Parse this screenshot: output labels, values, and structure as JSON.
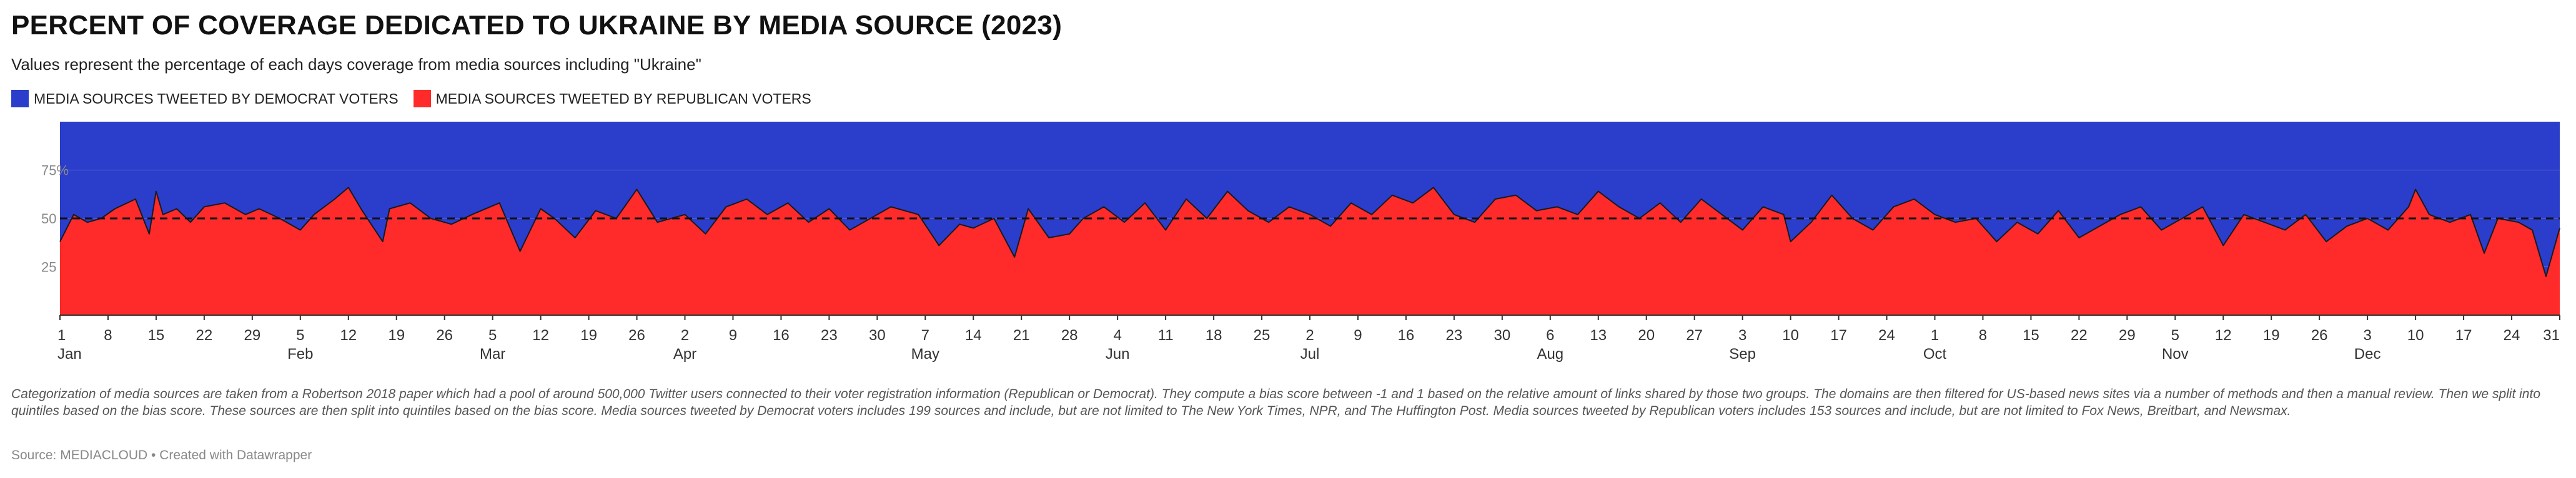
{
  "header": {
    "title": "PERCENT OF COVERAGE DEDICATED TO UKRAINE BY MEDIA SOURCE (2023)",
    "subtitle": "Values represent the percentage of each days coverage from media sources including \"Ukraine\""
  },
  "legend": {
    "democrat_label": "MEDIA SOURCES TWEETED BY DEMOCRAT VOTERS",
    "republican_label": "MEDIA SOURCES TWEETED BY REPUBLICAN VOTERS"
  },
  "colors": {
    "democrat": "#2b3dcb",
    "republican": "#ff2a2a",
    "reference_line": "#111111"
  },
  "chart_data": {
    "type": "area",
    "stacked": true,
    "y_ticks": [
      {
        "value": 25,
        "label": "25"
      },
      {
        "value": 50,
        "label": "50"
      },
      {
        "value": 75,
        "label": "75%"
      }
    ],
    "ylim": [
      0,
      100
    ],
    "reference_line": 50,
    "x_start": "2023-01-01",
    "x_end": "2023-12-31",
    "x_ticks": [
      {
        "date": "2023-01-01",
        "day": "1",
        "month": "Jan"
      },
      {
        "date": "2023-01-08",
        "day": "8",
        "month": ""
      },
      {
        "date": "2023-01-15",
        "day": "15",
        "month": ""
      },
      {
        "date": "2023-01-22",
        "day": "22",
        "month": ""
      },
      {
        "date": "2023-01-29",
        "day": "29",
        "month": ""
      },
      {
        "date": "2023-02-05",
        "day": "5",
        "month": "Feb"
      },
      {
        "date": "2023-02-12",
        "day": "12",
        "month": ""
      },
      {
        "date": "2023-02-19",
        "day": "19",
        "month": ""
      },
      {
        "date": "2023-02-26",
        "day": "26",
        "month": ""
      },
      {
        "date": "2023-03-05",
        "day": "5",
        "month": "Mar"
      },
      {
        "date": "2023-03-12",
        "day": "12",
        "month": ""
      },
      {
        "date": "2023-03-19",
        "day": "19",
        "month": ""
      },
      {
        "date": "2023-03-26",
        "day": "26",
        "month": ""
      },
      {
        "date": "2023-04-02",
        "day": "2",
        "month": "Apr"
      },
      {
        "date": "2023-04-09",
        "day": "9",
        "month": ""
      },
      {
        "date": "2023-04-16",
        "day": "16",
        "month": ""
      },
      {
        "date": "2023-04-23",
        "day": "23",
        "month": ""
      },
      {
        "date": "2023-04-30",
        "day": "30",
        "month": ""
      },
      {
        "date": "2023-05-07",
        "day": "7",
        "month": "May"
      },
      {
        "date": "2023-05-14",
        "day": "14",
        "month": ""
      },
      {
        "date": "2023-05-21",
        "day": "21",
        "month": ""
      },
      {
        "date": "2023-05-28",
        "day": "28",
        "month": ""
      },
      {
        "date": "2023-06-04",
        "day": "4",
        "month": "Jun"
      },
      {
        "date": "2023-06-11",
        "day": "11",
        "month": ""
      },
      {
        "date": "2023-06-18",
        "day": "18",
        "month": ""
      },
      {
        "date": "2023-06-25",
        "day": "25",
        "month": ""
      },
      {
        "date": "2023-07-02",
        "day": "2",
        "month": "Jul"
      },
      {
        "date": "2023-07-09",
        "day": "9",
        "month": ""
      },
      {
        "date": "2023-07-16",
        "day": "16",
        "month": ""
      },
      {
        "date": "2023-07-23",
        "day": "23",
        "month": ""
      },
      {
        "date": "2023-07-30",
        "day": "30",
        "month": ""
      },
      {
        "date": "2023-08-06",
        "day": "6",
        "month": "Aug"
      },
      {
        "date": "2023-08-13",
        "day": "13",
        "month": ""
      },
      {
        "date": "2023-08-20",
        "day": "20",
        "month": ""
      },
      {
        "date": "2023-08-27",
        "day": "27",
        "month": ""
      },
      {
        "date": "2023-09-03",
        "day": "3",
        "month": "Sep"
      },
      {
        "date": "2023-09-10",
        "day": "10",
        "month": ""
      },
      {
        "date": "2023-09-17",
        "day": "17",
        "month": ""
      },
      {
        "date": "2023-09-24",
        "day": "24",
        "month": ""
      },
      {
        "date": "2023-10-01",
        "day": "1",
        "month": "Oct"
      },
      {
        "date": "2023-10-08",
        "day": "8",
        "month": ""
      },
      {
        "date": "2023-10-15",
        "day": "15",
        "month": ""
      },
      {
        "date": "2023-10-22",
        "day": "22",
        "month": ""
      },
      {
        "date": "2023-10-29",
        "day": "29",
        "month": ""
      },
      {
        "date": "2023-11-05",
        "day": "5",
        "month": "Nov"
      },
      {
        "date": "2023-11-12",
        "day": "12",
        "month": ""
      },
      {
        "date": "2023-11-19",
        "day": "19",
        "month": ""
      },
      {
        "date": "2023-11-26",
        "day": "26",
        "month": ""
      },
      {
        "date": "2023-12-03",
        "day": "3",
        "month": "Dec"
      },
      {
        "date": "2023-12-10",
        "day": "10",
        "month": ""
      },
      {
        "date": "2023-12-17",
        "day": "17",
        "month": ""
      },
      {
        "date": "2023-12-24",
        "day": "24",
        "month": ""
      },
      {
        "date": "2023-12-31",
        "day": "31",
        "month": ""
      }
    ],
    "series": [
      {
        "name": "MEDIA SOURCES TWEETED BY REPUBLICAN VOTERS",
        "color": "#ff2a2a",
        "x": [
          "2023-01-01",
          "2023-01-03",
          "2023-01-05",
          "2023-01-07",
          "2023-01-09",
          "2023-01-12",
          "2023-01-14",
          "2023-01-15",
          "2023-01-16",
          "2023-01-18",
          "2023-01-20",
          "2023-01-22",
          "2023-01-25",
          "2023-01-28",
          "2023-01-30",
          "2023-02-02",
          "2023-02-05",
          "2023-02-07",
          "2023-02-10",
          "2023-02-12",
          "2023-02-14",
          "2023-02-17",
          "2023-02-18",
          "2023-02-21",
          "2023-02-24",
          "2023-02-27",
          "2023-03-02",
          "2023-03-06",
          "2023-03-09",
          "2023-03-12",
          "2023-03-14",
          "2023-03-17",
          "2023-03-20",
          "2023-03-23",
          "2023-03-26",
          "2023-03-29",
          "2023-04-02",
          "2023-04-05",
          "2023-04-08",
          "2023-04-11",
          "2023-04-14",
          "2023-04-17",
          "2023-04-20",
          "2023-04-23",
          "2023-04-26",
          "2023-04-29",
          "2023-05-02",
          "2023-05-06",
          "2023-05-09",
          "2023-05-12",
          "2023-05-14",
          "2023-05-17",
          "2023-05-20",
          "2023-05-22",
          "2023-05-25",
          "2023-05-28",
          "2023-05-30",
          "2023-06-02",
          "2023-06-05",
          "2023-06-08",
          "2023-06-11",
          "2023-06-14",
          "2023-06-17",
          "2023-06-20",
          "2023-06-23",
          "2023-06-26",
          "2023-06-29",
          "2023-07-02",
          "2023-07-05",
          "2023-07-08",
          "2023-07-11",
          "2023-07-14",
          "2023-07-17",
          "2023-07-20",
          "2023-07-23",
          "2023-07-26",
          "2023-07-29",
          "2023-08-01",
          "2023-08-04",
          "2023-08-07",
          "2023-08-10",
          "2023-08-13",
          "2023-08-16",
          "2023-08-19",
          "2023-08-22",
          "2023-08-25",
          "2023-08-28",
          "2023-08-31",
          "2023-09-03",
          "2023-09-06",
          "2023-09-09",
          "2023-09-10",
          "2023-09-13",
          "2023-09-16",
          "2023-09-19",
          "2023-09-22",
          "2023-09-25",
          "2023-09-28",
          "2023-10-01",
          "2023-10-04",
          "2023-10-07",
          "2023-10-10",
          "2023-10-13",
          "2023-10-16",
          "2023-10-19",
          "2023-10-22",
          "2023-10-25",
          "2023-10-28",
          "2023-10-31",
          "2023-11-03",
          "2023-11-06",
          "2023-11-09",
          "2023-11-12",
          "2023-11-15",
          "2023-11-18",
          "2023-11-21",
          "2023-11-24",
          "2023-11-27",
          "2023-11-30",
          "2023-12-03",
          "2023-12-06",
          "2023-12-09",
          "2023-12-10",
          "2023-12-12",
          "2023-12-15",
          "2023-12-18",
          "2023-12-20",
          "2023-12-22",
          "2023-12-25",
          "2023-12-27",
          "2023-12-29",
          "2023-12-31"
        ],
        "values": [
          38,
          52,
          48,
          50,
          55,
          60,
          42,
          64,
          52,
          55,
          48,
          56,
          58,
          52,
          55,
          50,
          44,
          52,
          60,
          66,
          54,
          38,
          55,
          58,
          50,
          47,
          52,
          58,
          33,
          55,
          50,
          40,
          54,
          50,
          65,
          48,
          52,
          42,
          56,
          60,
          52,
          58,
          48,
          55,
          44,
          50,
          56,
          52,
          36,
          47,
          45,
          50,
          30,
          55,
          40,
          42,
          50,
          56,
          48,
          58,
          44,
          60,
          50,
          64,
          54,
          48,
          56,
          52,
          46,
          58,
          52,
          62,
          58,
          66,
          52,
          48,
          60,
          62,
          54,
          56,
          52,
          64,
          56,
          50,
          58,
          48,
          60,
          52,
          44,
          56,
          52,
          38,
          48,
          62,
          50,
          44,
          56,
          60,
          52,
          48,
          50,
          38,
          48,
          42,
          54,
          40,
          46,
          52,
          56,
          44,
          50,
          56,
          36,
          52,
          48,
          44,
          52,
          38,
          46,
          50,
          44,
          56,
          65,
          52,
          48,
          52,
          32,
          50,
          48,
          44,
          20,
          45
        ]
      }
    ]
  },
  "notes": "Categorization of media sources are taken from a Robertson 2018 paper which had a pool of around 500,000 Twitter users connected to their voter registration information (Republican or Democrat). They compute a bias score between -1 and 1 based on the relative amount of links shared by those two groups. The domains are then filtered for US-based news sites via a number of methods and then a manual review. Then we split into quintiles based on the bias score. These sources are then split into quintiles based on the bias score. Media sources tweeted by Democrat voters includes 199 sources and include, but are not limited to The New York Times, NPR, and The Huffington Post. Media sources tweeted by Republican voters includes 153 sources and include, but are not limited to Fox News, Breitbart, and Newsmax.",
  "source": "Source: MEDIACLOUD • Created with Datawrapper"
}
